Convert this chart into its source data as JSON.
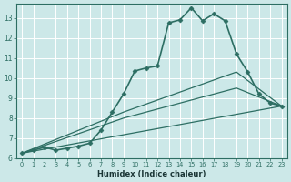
{
  "xlabel": "Humidex (Indice chaleur)",
  "bg_color": "#cce8e8",
  "line_color": "#2d6e63",
  "xlim": [
    -0.5,
    23.5
  ],
  "ylim": [
    6,
    13.7
  ],
  "yticks": [
    6,
    7,
    8,
    9,
    10,
    11,
    12,
    13
  ],
  "xticks": [
    0,
    1,
    2,
    3,
    4,
    5,
    6,
    7,
    8,
    9,
    10,
    11,
    12,
    13,
    14,
    15,
    16,
    17,
    18,
    19,
    20,
    21,
    22,
    23
  ],
  "series": [
    {
      "x": [
        0,
        1,
        2,
        3,
        4,
        5,
        6,
        7,
        8,
        9,
        10,
        11,
        12,
        13,
        14,
        15,
        16,
        17,
        18,
        19,
        20,
        21,
        22,
        23
      ],
      "y": [
        6.25,
        6.4,
        6.55,
        6.4,
        6.5,
        6.6,
        6.75,
        7.4,
        8.3,
        9.2,
        10.35,
        10.5,
        10.6,
        12.75,
        12.9,
        13.5,
        12.85,
        13.2,
        12.85,
        11.2,
        10.3,
        9.2,
        8.75,
        8.6
      ],
      "marker": "D",
      "markersize": 2.5,
      "linewidth": 1.2,
      "use_marker": true
    },
    {
      "x": [
        0,
        23
      ],
      "y": [
        6.25,
        8.6
      ],
      "marker": null,
      "linewidth": 0.9,
      "use_marker": false
    },
    {
      "x": [
        0,
        9,
        19,
        23
      ],
      "y": [
        6.25,
        8.3,
        10.3,
        8.6
      ],
      "marker": null,
      "linewidth": 0.9,
      "use_marker": false
    },
    {
      "x": [
        0,
        9,
        19,
        23
      ],
      "y": [
        6.25,
        8.0,
        9.5,
        8.6
      ],
      "marker": null,
      "linewidth": 0.9,
      "use_marker": false
    }
  ]
}
